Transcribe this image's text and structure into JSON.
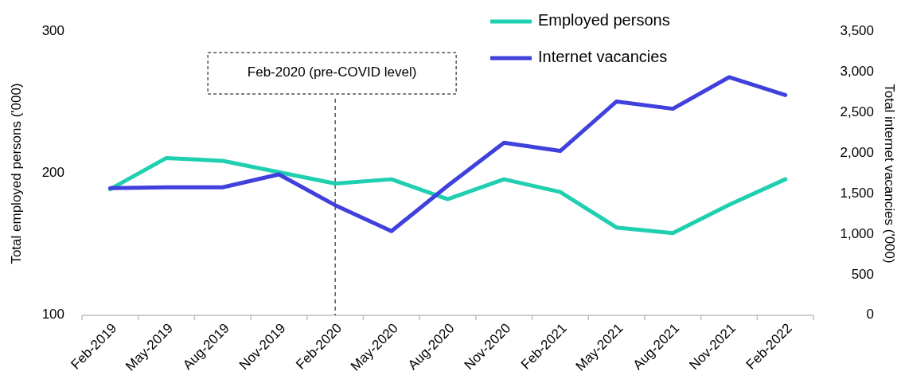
{
  "chart_data": {
    "type": "line",
    "ylabel": "Total employed persons ('000)",
    "y2label": "Total internet vacancies ('000)",
    "categories": [
      "Feb-2019",
      "May-2019",
      "Aug-2019",
      "Nov-2019",
      "Feb-2020",
      "May-2020",
      "Aug-2020",
      "Nov-2020",
      "Feb-2021",
      "May-2021",
      "Aug-2021",
      "Nov-2021",
      "Feb-2022"
    ],
    "series": [
      {
        "name": "Employed persons",
        "color": "#1fcfb0",
        "values": [
          189,
          211,
          209,
          201,
          193,
          196,
          182,
          196,
          187,
          162,
          158,
          178,
          196
        ]
      },
      {
        "name": "Internet vacancies",
        "color": "#4040dd",
        "axis": "y2",
        "values": [
          1570,
          1580,
          1580,
          1740,
          1360,
          1040,
          1600,
          2130,
          2030,
          2640,
          2550,
          2940,
          2720
        ]
      }
    ],
    "ylim": [
      100,
      300
    ],
    "yticks": [
      100,
      200,
      300
    ],
    "y2lim": [
      0,
      3500
    ],
    "y2ticks": [
      {
        "value": 0,
        "label": "0"
      },
      {
        "value": 500,
        "label": "500"
      },
      {
        "value": 1000,
        "label": "1,000"
      },
      {
        "value": 1500,
        "label": "1,500"
      },
      {
        "value": 2000,
        "label": "2,000"
      },
      {
        "value": 2500,
        "label": "2,500"
      },
      {
        "value": 3000,
        "label": "3,000"
      },
      {
        "value": 3500,
        "label": "3,500"
      }
    ],
    "ref_lines": [
      {
        "axis": "x",
        "value": "Feb-2020",
        "label": "Feb-2020 (pre-COVID level)",
        "line_style": "dashed",
        "color": "#000000"
      }
    ],
    "legend": "top right",
    "grid": false,
    "line_style": "solid",
    "marker": "none"
  }
}
